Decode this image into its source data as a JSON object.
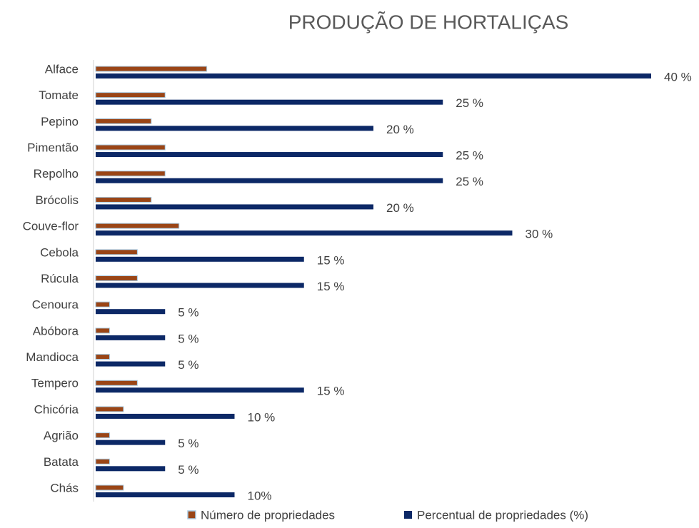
{
  "chart_data": {
    "type": "bar",
    "orientation": "horizontal",
    "title": "PRODUÇÃO DE HORTALIÇAS",
    "categories": [
      "Alface",
      "Tomate",
      "Pepino",
      "Pimentão",
      "Repolho",
      "Brócolis",
      "Couve-flor",
      "Cebola",
      "Rúcula",
      "Cenoura",
      "Abóbora",
      "Mandioca",
      "Tempero",
      "Chicória",
      "Agrião",
      "Batata",
      "Chás"
    ],
    "series": [
      {
        "name": "Número de propriedades",
        "color": "#9a4516",
        "values": [
          8,
          5,
          4,
          5,
          5,
          4,
          6,
          3,
          3,
          1,
          1,
          1,
          3,
          2,
          1,
          1,
          2
        ]
      },
      {
        "name": "Percentual de propriedades (%)",
        "color": "#0c2866",
        "values": [
          40,
          25,
          20,
          25,
          25,
          20,
          30,
          15,
          15,
          5,
          5,
          5,
          15,
          10,
          5,
          5,
          10
        ],
        "value_labels": [
          "40 %",
          "25 %",
          "20 %",
          "25 %",
          "25 %",
          "20 %",
          "30 %",
          "15 %",
          "15 %",
          "5 %",
          "5 %",
          "5 %",
          "15 %",
          "10 %",
          "5 %",
          "5 %",
          "10%"
        ]
      }
    ],
    "xlim": [
      0,
      40
    ],
    "legend": "bottom"
  }
}
